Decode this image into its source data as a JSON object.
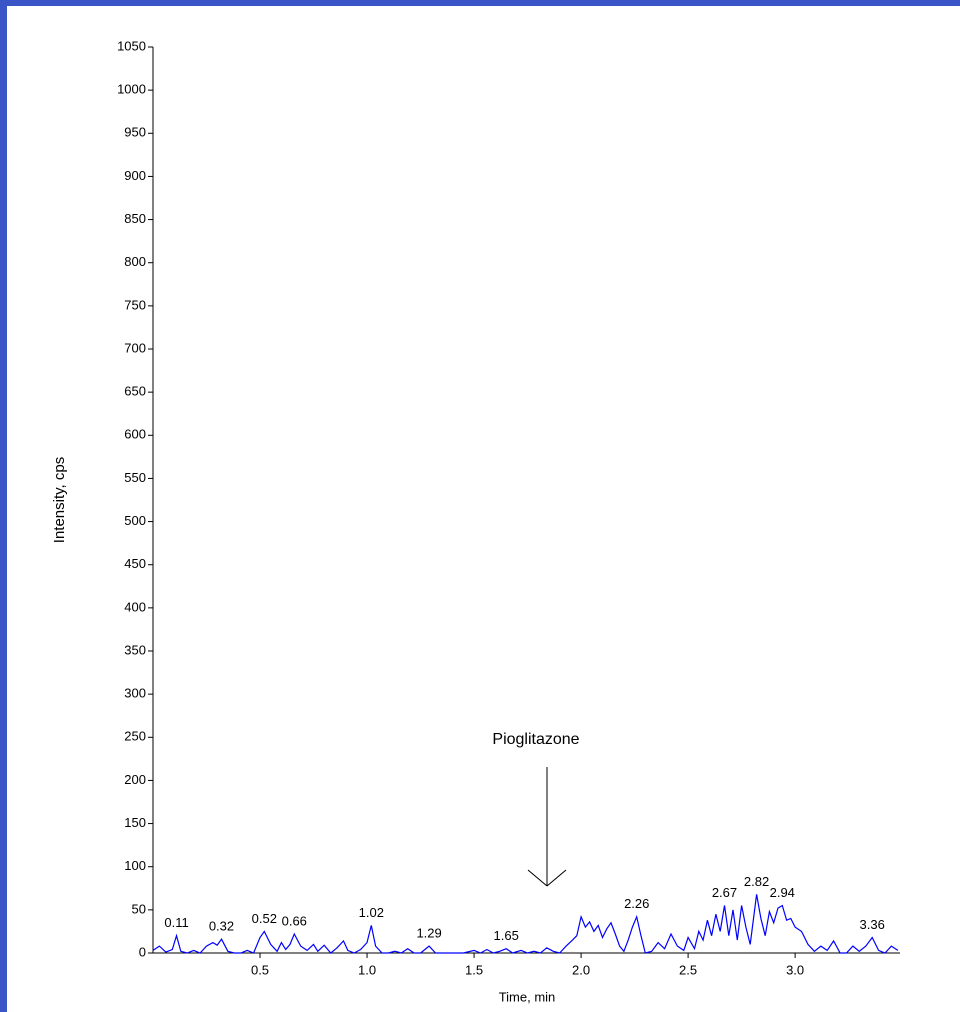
{
  "chart_data": {
    "type": "line",
    "x_label": "Time, min",
    "y_label": "Intensity, cps",
    "annotation": "Pioglitazone",
    "color": "#0000ff",
    "xlim": [
      0,
      3.49
    ],
    "ylim": [
      0,
      1050
    ],
    "xticks": [
      0.5,
      {
        "value": 1,
        "label": "1.0"
      },
      1.5,
      {
        "value": 2,
        "label": "2.0"
      },
      2.5,
      {
        "value": 3,
        "label": "3.0"
      }
    ],
    "yticks": [
      0,
      50,
      100,
      150,
      200,
      250,
      300,
      350,
      400,
      450,
      500,
      550,
      600,
      650,
      700,
      750,
      800,
      850,
      900,
      950,
      1000,
      1050
    ],
    "peaks": [
      0.11,
      0.32,
      0.52,
      0.66,
      1.02,
      1.29,
      1.65,
      2.26,
      2.67,
      2.82,
      2.94,
      3.36
    ],
    "x": [
      0,
      0.03,
      0.06,
      0.09,
      0.11,
      0.13,
      0.16,
      0.19,
      0.22,
      0.25,
      0.28,
      0.3,
      0.32,
      0.35,
      0.38,
      0.41,
      0.44,
      0.47,
      0.5,
      0.52,
      0.55,
      0.58,
      0.6,
      0.62,
      0.64,
      0.66,
      0.69,
      0.72,
      0.75,
      0.77,
      0.8,
      0.83,
      0.86,
      0.89,
      0.91,
      0.94,
      0.97,
      1.0,
      1.02,
      1.04,
      1.07,
      1.1,
      1.13,
      1.16,
      1.19,
      1.22,
      1.25,
      1.29,
      1.32,
      1.36,
      1.4,
      1.45,
      1.5,
      1.53,
      1.56,
      1.59,
      1.62,
      1.65,
      1.68,
      1.72,
      1.75,
      1.78,
      1.81,
      1.84,
      1.87,
      1.9,
      1.93,
      1.96,
      1.98,
      2.0,
      2.02,
      2.04,
      2.06,
      2.08,
      2.1,
      2.12,
      2.14,
      2.16,
      2.18,
      2.2,
      2.22,
      2.24,
      2.26,
      2.28,
      2.3,
      2.33,
      2.36,
      2.39,
      2.42,
      2.45,
      2.48,
      2.5,
      2.53,
      2.55,
      2.57,
      2.59,
      2.61,
      2.63,
      2.65,
      2.67,
      2.69,
      2.71,
      2.73,
      2.75,
      2.77,
      2.79,
      2.82,
      2.84,
      2.86,
      2.88,
      2.9,
      2.92,
      2.94,
      2.96,
      2.98,
      3.0,
      3.03,
      3.06,
      3.09,
      3.12,
      3.15,
      3.18,
      3.21,
      3.24,
      3.27,
      3.3,
      3.33,
      3.36,
      3.39,
      3.42,
      3.45,
      3.48
    ],
    "values": [
      3,
      8,
      1,
      4,
      20,
      2,
      0,
      3,
      0,
      8,
      12,
      9,
      16,
      2,
      0,
      0,
      3,
      0,
      18,
      25,
      10,
      2,
      12,
      4,
      10,
      22,
      8,
      3,
      10,
      2,
      9,
      0,
      6,
      14,
      3,
      0,
      4,
      12,
      32,
      8,
      0,
      0,
      2,
      0,
      5,
      0,
      0,
      8,
      0,
      0,
      0,
      0,
      3,
      0,
      4,
      0,
      2,
      5,
      0,
      3,
      0,
      2,
      0,
      6,
      2,
      0,
      8,
      15,
      20,
      42,
      30,
      36,
      25,
      32,
      18,
      28,
      35,
      22,
      8,
      2,
      15,
      30,
      42,
      20,
      0,
      2,
      12,
      5,
      22,
      8,
      3,
      18,
      5,
      25,
      15,
      38,
      20,
      45,
      25,
      55,
      20,
      50,
      15,
      55,
      30,
      10,
      68,
      40,
      20,
      48,
      35,
      52,
      55,
      38,
      40,
      30,
      25,
      10,
      2,
      8,
      3,
      14,
      0,
      0,
      8,
      2,
      8,
      18,
      3,
      0,
      8,
      3
    ]
  }
}
